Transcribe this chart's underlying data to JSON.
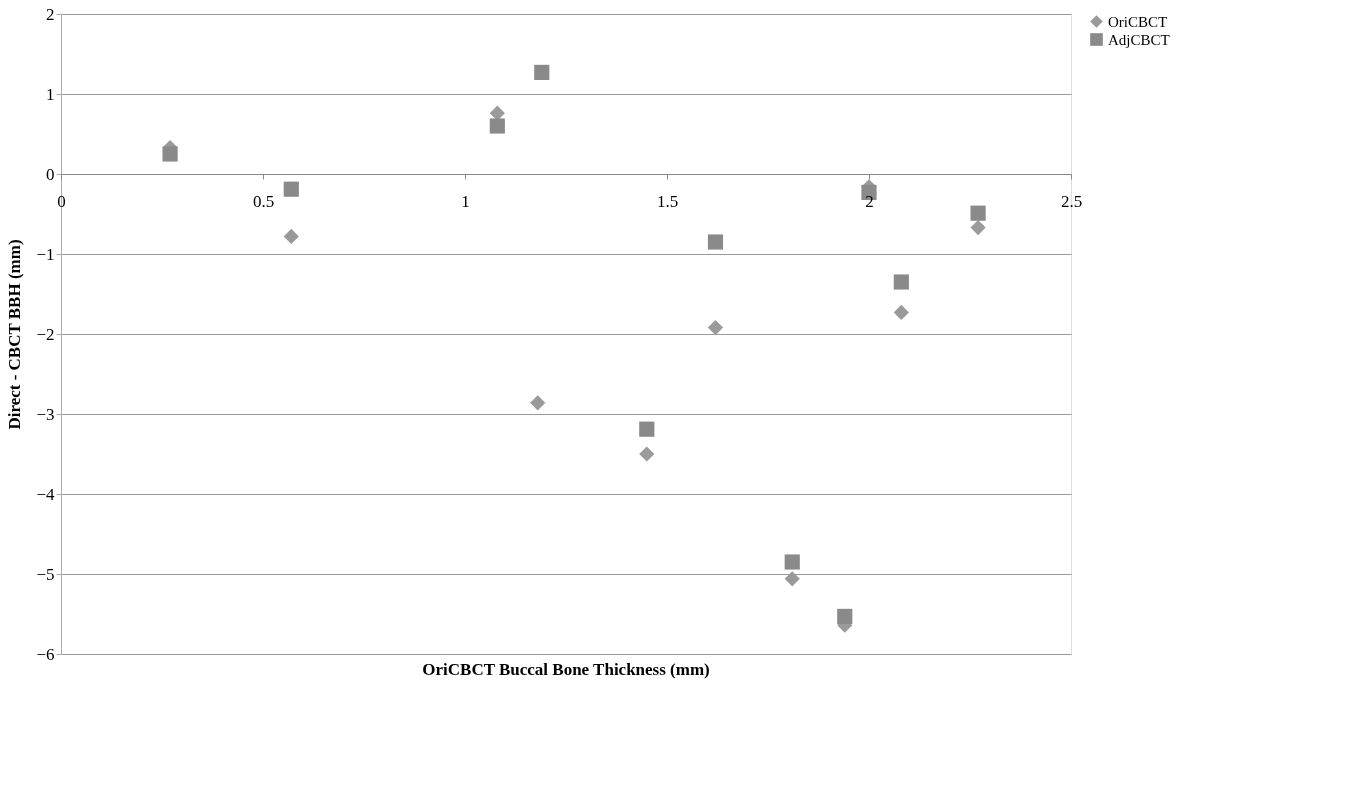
{
  "chart_data": {
    "type": "scatter",
    "xlabel": "OriCBCT Buccal Bone Thickness (mm)",
    "ylabel": "Direct - CBCT BBH (mm)",
    "x": [
      0.27,
      0.57,
      1.08,
      1.18,
      1.45,
      1.62,
      1.81,
      1.94,
      2.0,
      2.08,
      2.27
    ],
    "series": [
      {
        "name": "OriCBCT",
        "color": "#9a9a9a",
        "marker": "diamond",
        "values": [
          0.33,
          -0.78,
          0.76,
          -2.86,
          -3.5,
          -1.92,
          -5.06,
          -5.64,
          -0.16,
          -1.73,
          -0.67
        ]
      },
      {
        "name": "AdjCBCT",
        "color": "#8a8a8a",
        "marker": "square",
        "x": [
          0.27,
          0.57,
          1.08,
          1.19,
          1.45,
          1.62,
          1.81,
          1.94,
          2.0,
          2.08,
          2.27
        ],
        "values": [
          0.25,
          -0.19,
          0.6,
          1.27,
          -3.19,
          -0.85,
          -4.85,
          -5.53,
          -0.23,
          -1.35,
          -0.49
        ]
      }
    ],
    "xlim": [
      0,
      2.5
    ],
    "xticks": [
      0,
      0.5,
      1,
      1.5,
      2,
      2.5
    ],
    "ylim": [
      -6,
      2
    ],
    "yticks": [
      -6,
      -5,
      -4,
      -3,
      -2,
      -1,
      0,
      1,
      2
    ],
    "grid": "y",
    "legend": "right"
  }
}
